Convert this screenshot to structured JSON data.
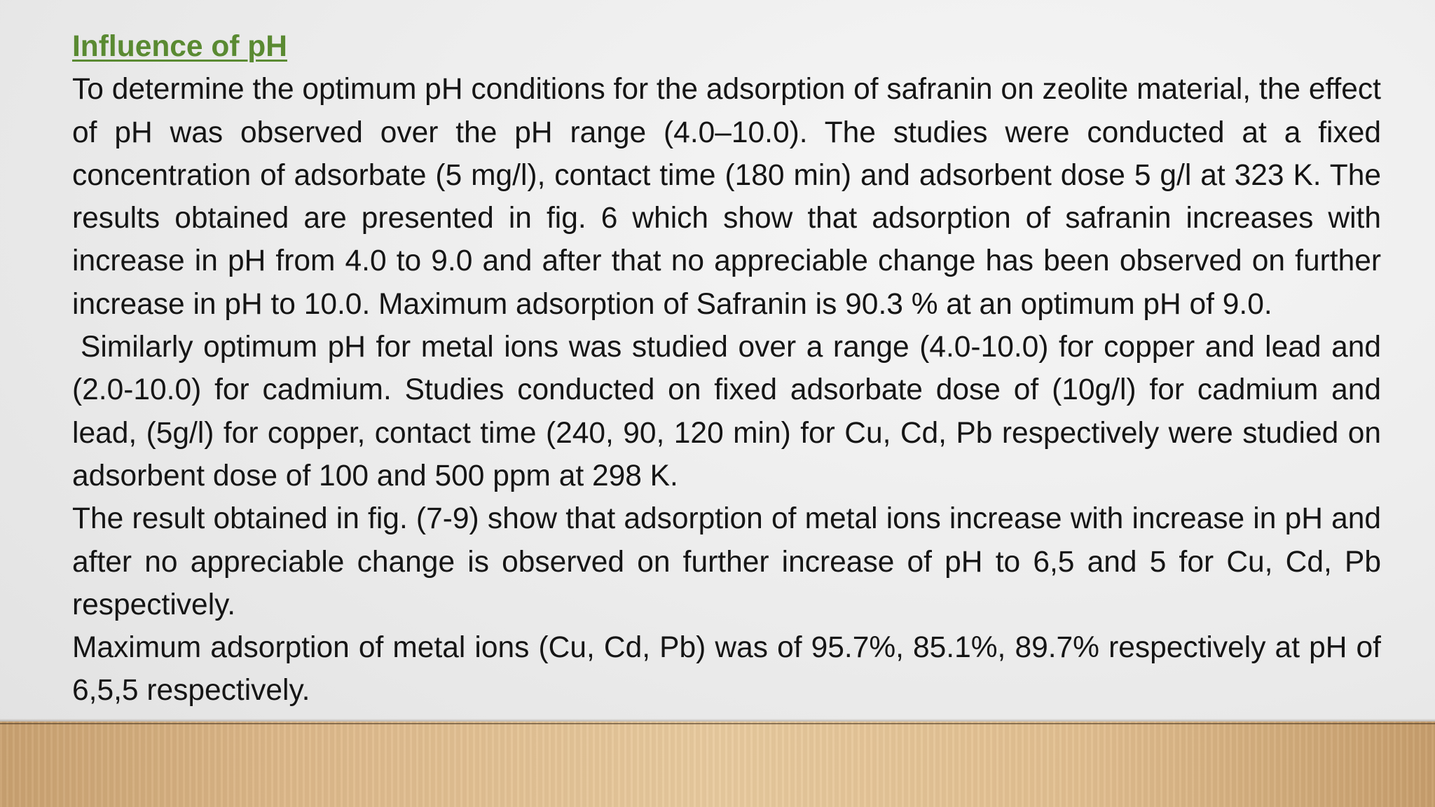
{
  "heading": "Influence of pH",
  "paragraphs": [
    "To determine the optimum pH conditions for the adsorption of safranin on zeolite material, the effect of pH was observed over the pH range (4.0–10.0). The studies were conducted at a fixed concentration of adsorbate (5 mg/l), contact time (180 min) and adsorbent dose 5 g/l at 323 K. The results obtained are presented in fig. 6 which show that adsorption of safranin increases with increase in pH from 4.0 to 9.0 and after that no appreciable change has been observed on further increase in pH to 10.0. Maximum adsorption of Safranin is 90.3 % at an optimum pH of 9.0.",
    "Similarly optimum pH for metal ions was studied over a range (4.0-10.0) for copper and lead and (2.0-10.0) for cadmium. Studies conducted on fixed adsorbate dose of (10g/l) for cadmium and lead, (5g/l) for copper, contact time (240, 90, 120 min) for Cu, Cd, Pb respectively were studied on  adsorbent dose of 100 and 500 ppm at 298 K.",
    "The result obtained in fig. (7-9) show that adsorption of metal ions increase with increase in pH and after no appreciable change is observed on further increase of pH to 6,5 and 5 for Cu, Cd, Pb respectively.",
    "Maximum adsorption of metal ions (Cu, Cd, Pb) was of 95.7%, 85.1%, 89.7% respectively at pH of 6,5,5 respectively."
  ],
  "colors": {
    "heading": "#5a8a32",
    "text": "#151515",
    "background": "#ececec",
    "floor": "#deb98a"
  }
}
